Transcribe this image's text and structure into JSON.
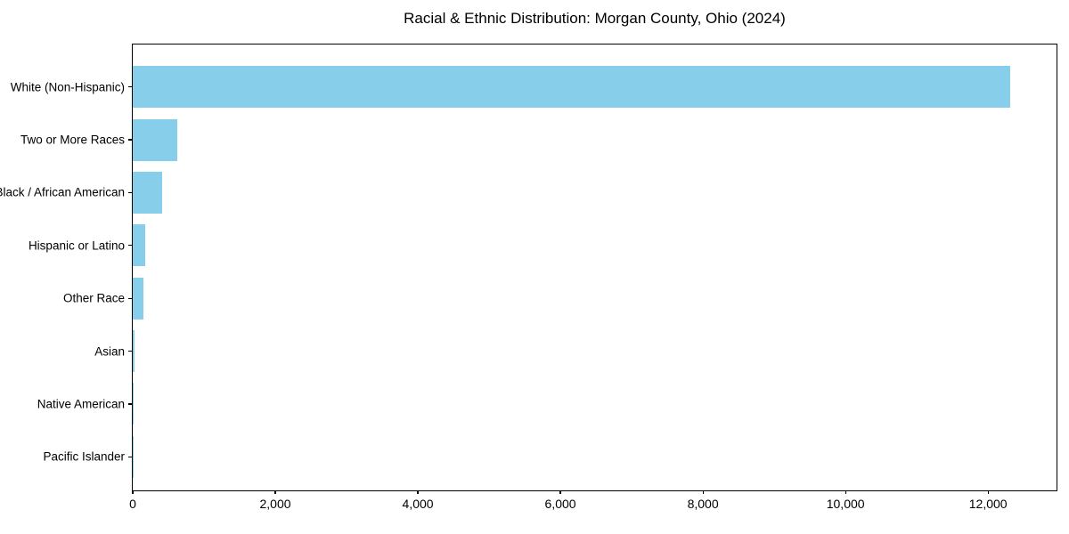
{
  "chart_data": {
    "type": "bar",
    "orientation": "horizontal",
    "title": "Racial & Ethnic Distribution: Morgan County, Ohio (2024)",
    "categories": [
      "White (Non-Hispanic)",
      "Two or More Races",
      "Black / African American",
      "Hispanic or Latino",
      "Other Race",
      "Asian",
      "Native American",
      "Pacific Islander"
    ],
    "values": [
      12310,
      620,
      410,
      180,
      150,
      20,
      15,
      3
    ],
    "xlabel": "",
    "ylabel": "",
    "xlim": [
      0,
      12960
    ],
    "x_ticks": [
      0,
      2000,
      4000,
      6000,
      8000,
      10000,
      12000
    ],
    "x_tick_labels": [
      "0",
      "2,000",
      "4,000",
      "6,000",
      "8,000",
      "10,000",
      "12,000"
    ],
    "bar_color": "#87CEEB",
    "axis_color": "#000000",
    "text_color": "#000000",
    "background_color": "#ffffff",
    "grid": false,
    "legend": null
  }
}
